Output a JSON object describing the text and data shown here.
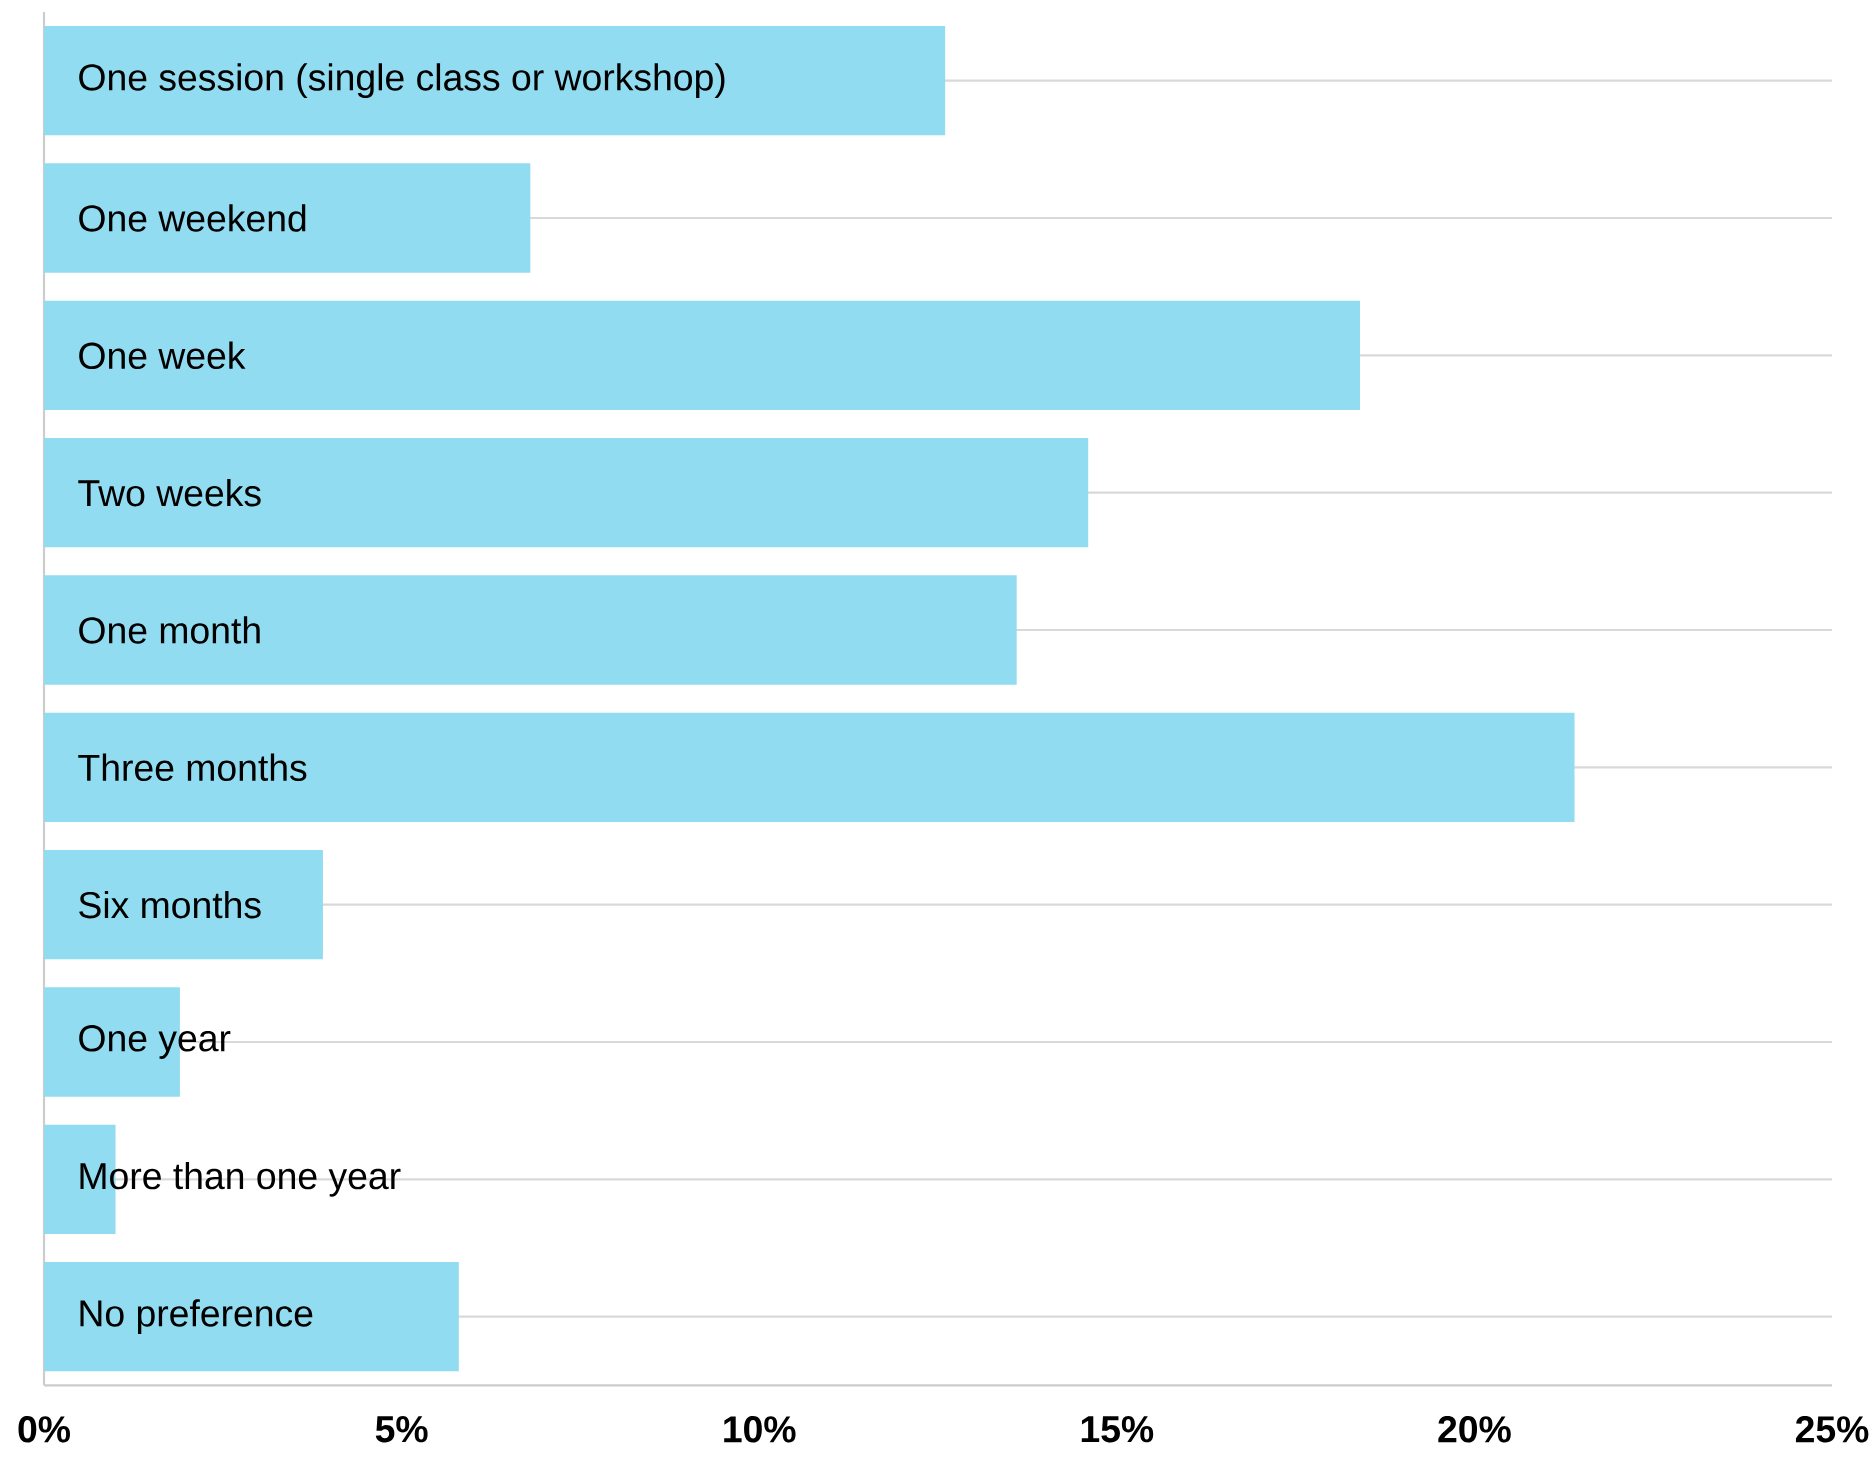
{
  "chart_data": {
    "type": "bar",
    "orientation": "horizontal",
    "categories": [
      "One session (single class or workshop)",
      "One weekend",
      "One week",
      "Two weeks",
      "One month",
      "Three months",
      "Six months",
      "One year",
      "More than one year",
      "No preference"
    ],
    "values": [
      12.6,
      6.8,
      18.4,
      14.6,
      13.6,
      21.4,
      3.9,
      1.9,
      1.0,
      5.8
    ],
    "color": "#91dcf0",
    "xlim": [
      0,
      25
    ],
    "xticks": [
      {
        "value": 0,
        "label": "0%"
      },
      {
        "value": 5,
        "label": "5%"
      },
      {
        "value": 10,
        "label": "10%"
      },
      {
        "value": 15,
        "label": "15%"
      },
      {
        "value": 20,
        "label": "20%"
      },
      {
        "value": 25,
        "label": "25%"
      }
    ],
    "grid": "y"
  }
}
